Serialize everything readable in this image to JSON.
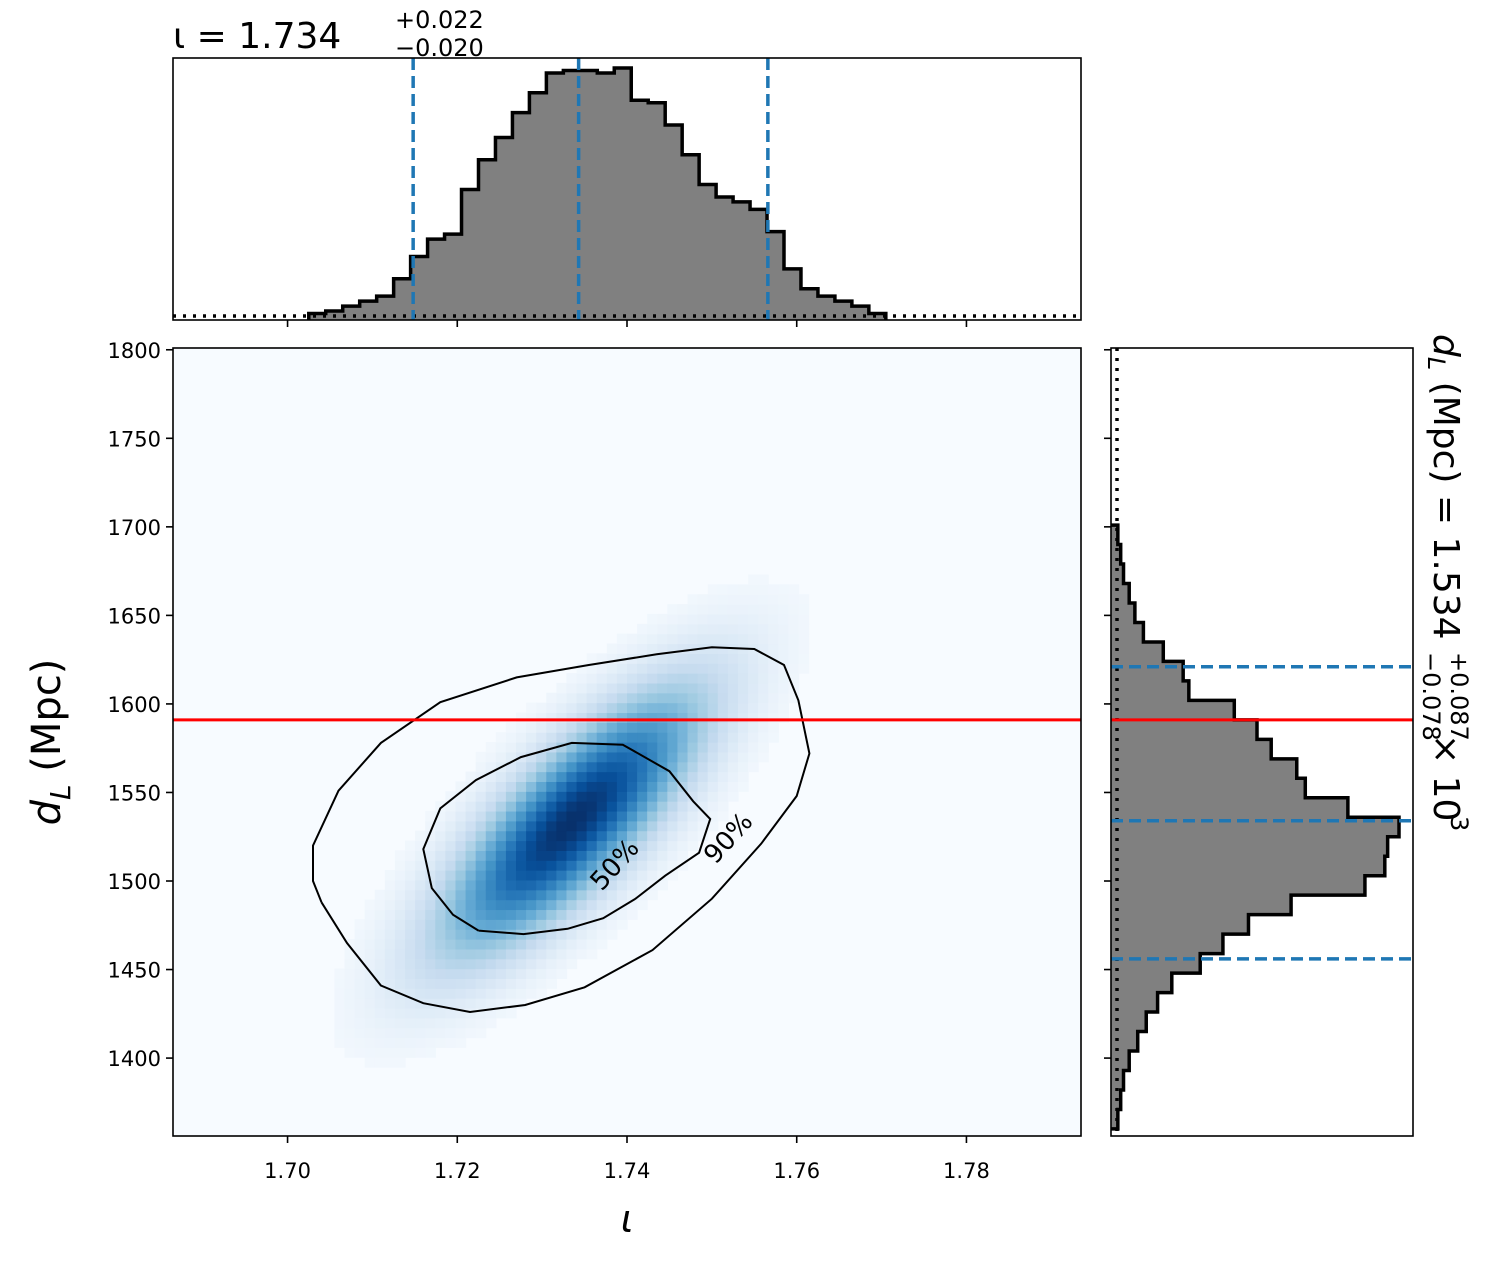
{
  "chart_data": {
    "type": "corner-2d",
    "x": {
      "symbol": "ι",
      "label": "ι",
      "lim": [
        1.6865,
        1.7935
      ],
      "ticks": [
        1.7,
        1.72,
        1.74,
        1.76,
        1.78
      ],
      "tick_labels": [
        "1.70",
        "1.72",
        "1.74",
        "1.76",
        "1.78"
      ]
    },
    "y": {
      "label": "d_L (Mpc)",
      "lim": [
        1356,
        1801
      ],
      "ticks": [
        1400,
        1450,
        1500,
        1550,
        1600,
        1650,
        1700,
        1750,
        1800
      ],
      "tick_labels": [
        "1400",
        "1450",
        "1500",
        "1550",
        "1600",
        "1650",
        "1700",
        "1750",
        "1800"
      ]
    },
    "x_marginal_title": {
      "prefix": "ι = 1.734",
      "upper": "+0.022",
      "lower": "−0.020",
      "median": 1.734,
      "upper_err": 0.022,
      "lower_err": 0.02
    },
    "y_marginal_title": {
      "prefix": "d_L (Mpc) = 1.534",
      "upper": "+0.087",
      "lower": "−0.078",
      "suffix": "× 10",
      "exponent": "3",
      "median": 1534,
      "upper_err": 87,
      "lower_err": 78
    },
    "x_quantile_lines": [
      1.7148,
      1.7343,
      1.7566
    ],
    "y_quantile_lines": [
      1456,
      1534,
      1621
    ],
    "truth_line_y": 1591,
    "x_histogram": {
      "bin_edges": [
        1.7025,
        1.7045,
        1.7065,
        1.7085,
        1.7105,
        1.7125,
        1.7145,
        1.7165,
        1.7185,
        1.7205,
        1.7225,
        1.7245,
        1.7265,
        1.7285,
        1.7305,
        1.7325,
        1.7345,
        1.7365,
        1.7385,
        1.7405,
        1.7425,
        1.7445,
        1.7465,
        1.7485,
        1.7505,
        1.7525,
        1.7545,
        1.7565,
        1.7585,
        1.7605,
        1.7625,
        1.7645,
        1.7665,
        1.7685,
        1.7705
      ],
      "counts": [
        0.01,
        0.02,
        0.04,
        0.06,
        0.08,
        0.15,
        0.24,
        0.31,
        0.33,
        0.51,
        0.63,
        0.72,
        0.82,
        0.9,
        0.98,
        0.99,
        0.99,
        0.98,
        1.0,
        0.87,
        0.86,
        0.77,
        0.65,
        0.53,
        0.48,
        0.46,
        0.43,
        0.34,
        0.19,
        0.11,
        0.08,
        0.06,
        0.04,
        0.01
      ]
    },
    "y_histogram": {
      "bin_edges": [
        1360,
        1371,
        1382,
        1393,
        1404,
        1415,
        1426,
        1437,
        1448,
        1459,
        1470,
        1481,
        1492,
        1503,
        1514,
        1525,
        1536,
        1547,
        1558,
        1569,
        1580,
        1591,
        1602,
        1613,
        1624,
        1635,
        1646,
        1657,
        1668,
        1679,
        1690,
        1701
      ],
      "counts": [
        0.01,
        0.02,
        0.03,
        0.05,
        0.08,
        0.11,
        0.15,
        0.2,
        0.3,
        0.38,
        0.47,
        0.62,
        0.88,
        0.95,
        0.96,
        1.0,
        0.82,
        0.67,
        0.64,
        0.55,
        0.5,
        0.42,
        0.26,
        0.24,
        0.17,
        0.1,
        0.07,
        0.05,
        0.03,
        0.02,
        0.01
      ]
    },
    "density_2d": {
      "center": [
        1.7335,
        1.5335
      ],
      "cov": [
        [
          0.000102,
          0.000391
        ],
        [
          0.000391,
          0.00241
        ]
      ]
    },
    "contours": [
      {
        "label": "50%",
        "level": 0.5,
        "points": [
          [
            1.7225,
            1.472
          ],
          [
            1.7278,
            1.47
          ],
          [
            1.733,
            1.473
          ],
          [
            1.7372,
            1.479
          ],
          [
            1.741,
            1.49
          ],
          [
            1.7445,
            1.503
          ],
          [
            1.7485,
            1.516
          ],
          [
            1.7498,
            1.535
          ],
          [
            1.7478,
            1.545
          ],
          [
            1.745,
            1.562
          ],
          [
            1.7395,
            1.577
          ],
          [
            1.7335,
            1.578
          ],
          [
            1.7275,
            1.57
          ],
          [
            1.7222,
            1.557
          ],
          [
            1.718,
            1.541
          ],
          [
            1.716,
            1.518
          ],
          [
            1.717,
            1.496
          ],
          [
            1.7195,
            1.481
          ],
          [
            1.7225,
            1.472
          ]
        ]
      },
      {
        "label": "90%",
        "level": 0.9,
        "points": [
          [
            1.704,
            1.488
          ],
          [
            1.707,
            1.465
          ],
          [
            1.711,
            1.441
          ],
          [
            1.716,
            1.431
          ],
          [
            1.7215,
            1.426
          ],
          [
            1.728,
            1.43
          ],
          [
            1.735,
            1.44
          ],
          [
            1.743,
            1.461
          ],
          [
            1.75,
            1.49
          ],
          [
            1.7558,
            1.521
          ],
          [
            1.76,
            1.548
          ],
          [
            1.7615,
            1.572
          ],
          [
            1.7602,
            1.602
          ],
          [
            1.7585,
            1.622
          ],
          [
            1.755,
            1.631
          ],
          [
            1.75,
            1.632
          ],
          [
            1.7435,
            1.628
          ],
          [
            1.7355,
            1.622
          ],
          [
            1.727,
            1.615
          ],
          [
            1.718,
            1.601
          ],
          [
            1.711,
            1.578
          ],
          [
            1.706,
            1.551
          ],
          [
            1.703,
            1.52
          ],
          [
            1.703,
            1.5
          ],
          [
            1.704,
            1.488
          ]
        ]
      }
    ],
    "colors": {
      "histogram_fill": "#808080",
      "histogram_edge": "#000000",
      "quantile_lines": "#1f77b4",
      "truth_line": "#ff0000",
      "density_cmap": "Blues",
      "contour": "#000000"
    },
    "grid": false,
    "legend": "none"
  }
}
